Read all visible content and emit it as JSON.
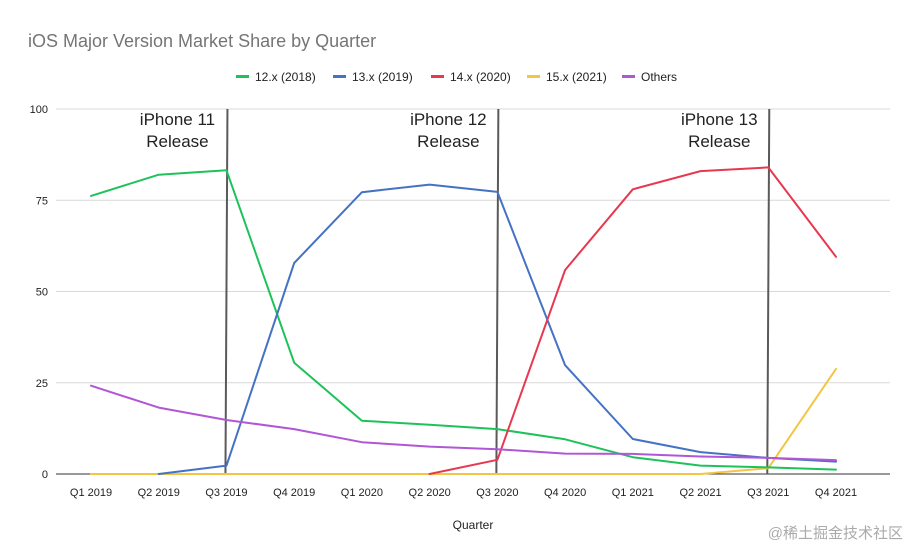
{
  "chart_data": {
    "type": "line",
    "title": "iOS Major Version Market Share by Quarter",
    "xlabel": "Quarter",
    "ylabel": "",
    "ylim": [
      0,
      100
    ],
    "yticks": [
      0,
      25,
      50,
      75,
      100
    ],
    "grid": true,
    "legend_position": "top",
    "categories": [
      "Q1 2019",
      "Q2 2019",
      "Q3 2019",
      "Q4 2019",
      "Q1 2020",
      "Q2 2020",
      "Q3 2020",
      "Q4 2020",
      "Q1 2021",
      "Q2 2021",
      "Q3 2021",
      "Q4 2021"
    ],
    "series": [
      {
        "name": "12.x (2018)",
        "color": "#1ec25a",
        "values": [
          76.2,
          82,
          83.2,
          30.5,
          14.6,
          13.5,
          12.3,
          9.5,
          4.6,
          2.3,
          1.8,
          1.2
        ]
      },
      {
        "name": "13.x (2019)",
        "color": "#4472c4",
        "values": [
          null,
          0,
          2.3,
          57.8,
          77.2,
          79.3,
          77.3,
          29.8,
          9.6,
          6,
          4.4,
          3.4
        ]
      },
      {
        "name": "14.x (2020)",
        "color": "#e8384f",
        "values": [
          null,
          null,
          null,
          null,
          null,
          0,
          3.9,
          55.9,
          78,
          83,
          84,
          59.5
        ]
      },
      {
        "name": "15.x (2021)",
        "color": "#f4c542",
        "values": [
          0,
          0,
          0,
          0,
          0,
          0,
          0,
          0,
          0,
          0,
          1.6,
          28.8
        ]
      },
      {
        "name": "Others",
        "color": "#b056d6",
        "values": [
          24.2,
          18.2,
          14.8,
          12.3,
          8.7,
          7.5,
          6.8,
          5.6,
          5.5,
          4.8,
          4.4,
          3.8
        ]
      }
    ],
    "annotations": [
      {
        "line1": "iPhone 11",
        "line2": "Release",
        "at": "Q3 2019"
      },
      {
        "line1": "iPhone 12",
        "line2": "Release",
        "at": "Q3 2020"
      },
      {
        "line1": "iPhone 13",
        "line2": "Release",
        "at": "Q3 2021"
      }
    ]
  },
  "watermark": "@稀土掘金技术社区"
}
